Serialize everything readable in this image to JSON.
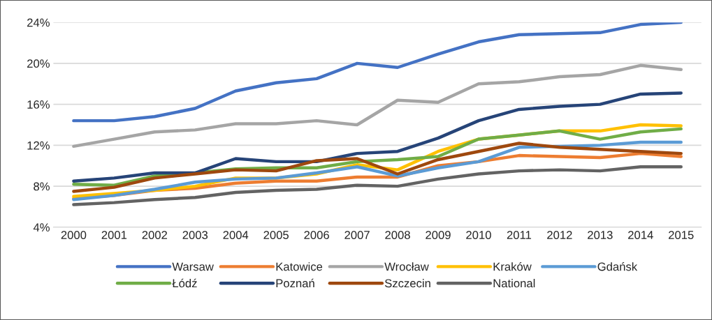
{
  "chart_data": {
    "type": "line",
    "categories": [
      "2000",
      "2001",
      "2002",
      "2003",
      "2004",
      "2005",
      "2006",
      "2007",
      "2008",
      "2009",
      "2010",
      "2011",
      "2012",
      "2013",
      "2014",
      "2015"
    ],
    "ylim": [
      4,
      24
    ],
    "yticks": [
      {
        "value": 4,
        "label": "4%"
      },
      {
        "value": 8,
        "label": "8%"
      },
      {
        "value": 12,
        "label": "12%"
      },
      {
        "value": 16,
        "label": "16%"
      },
      {
        "value": 20,
        "label": "20%"
      },
      {
        "value": 24,
        "label": "24%"
      }
    ],
    "grid": "y",
    "legend": "bottom",
    "series": [
      {
        "name": "Warsaw",
        "color": "#4472c4",
        "values": [
          14.4,
          14.4,
          14.8,
          15.6,
          17.3,
          18.1,
          18.5,
          20.0,
          19.6,
          20.9,
          22.1,
          22.8,
          22.9,
          23.0,
          23.8,
          24.0
        ]
      },
      {
        "name": "Katowice",
        "color": "#ed7d31",
        "values": [
          6.8,
          7.1,
          7.6,
          7.8,
          8.3,
          8.5,
          8.5,
          8.9,
          8.9,
          10.0,
          10.4,
          11.0,
          10.9,
          10.8,
          11.2,
          10.9
        ]
      },
      {
        "name": "Wrocław",
        "color": "#a5a5a5",
        "values": [
          11.9,
          12.6,
          13.3,
          13.5,
          14.1,
          14.1,
          14.4,
          14.0,
          16.4,
          16.2,
          18.0,
          18.2,
          18.7,
          18.9,
          19.8,
          19.4
        ]
      },
      {
        "name": "Kraków",
        "color": "#ffc000",
        "values": [
          7.0,
          7.3,
          7.6,
          8.0,
          8.8,
          8.8,
          9.2,
          10.1,
          9.6,
          11.4,
          12.6,
          13.0,
          13.4,
          13.4,
          14.0,
          13.9
        ]
      },
      {
        "name": "Gdańsk",
        "color": "#5b9bd5",
        "values": [
          6.7,
          7.1,
          7.7,
          8.4,
          8.7,
          8.8,
          9.3,
          9.9,
          9.0,
          9.8,
          10.4,
          11.8,
          11.9,
          12.0,
          12.3,
          12.3
        ]
      },
      {
        "name": "Łódź",
        "color": "#70ad47",
        "values": [
          8.2,
          8.1,
          9.0,
          9.3,
          9.7,
          9.8,
          9.8,
          10.4,
          10.6,
          10.9,
          12.6,
          13.0,
          13.4,
          12.6,
          13.3,
          13.6
        ]
      },
      {
        "name": "Poznań",
        "color": "#264478",
        "values": [
          8.5,
          8.8,
          9.3,
          9.3,
          10.7,
          10.4,
          10.4,
          11.2,
          11.4,
          12.7,
          14.4,
          15.5,
          15.8,
          16.0,
          17.0,
          17.1
        ]
      },
      {
        "name": "Szczecin",
        "color": "#9e480e",
        "values": [
          7.5,
          7.9,
          8.8,
          9.2,
          9.6,
          9.5,
          10.5,
          10.7,
          9.2,
          10.6,
          11.4,
          12.2,
          11.8,
          11.6,
          11.4,
          11.2
        ]
      },
      {
        "name": "National",
        "color": "#636363",
        "values": [
          6.2,
          6.4,
          6.7,
          6.9,
          7.4,
          7.6,
          7.7,
          8.1,
          8.0,
          8.7,
          9.2,
          9.5,
          9.6,
          9.5,
          9.9,
          9.9
        ]
      }
    ]
  }
}
